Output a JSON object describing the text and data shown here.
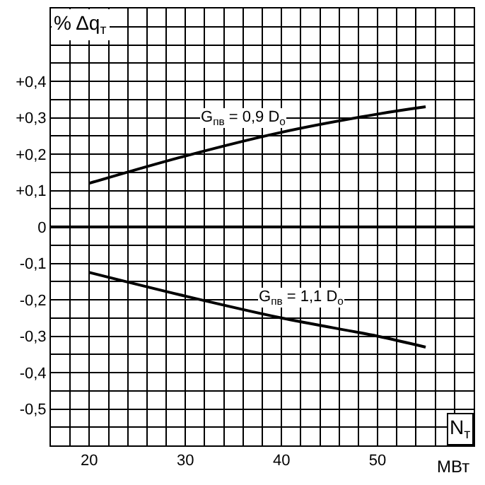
{
  "chart_data": {
    "type": "line",
    "ylabel": "% Δq$_{т}$",
    "xlabel": "N$_{т}$",
    "annotations": [
      "МВт",
      {
        "text": "G$_{пв}$ = 0,9 D$_{о}$",
        "x": 36,
        "y": 0.235
      },
      {
        "text": "G$_{пв}$ = 1,1 D$_{о}$",
        "x": 42,
        "y": -0.26
      }
    ],
    "series": [
      {
        "color": "#000000",
        "x": [
          20,
          30,
          40,
          50,
          55
        ],
        "values": [
          0.12,
          0.195,
          0.26,
          0.31,
          0.33
        ]
      },
      {
        "color": "#000000",
        "x": [
          20,
          30,
          40,
          50,
          55
        ],
        "values": [
          -0.125,
          -0.19,
          -0.25,
          -0.3,
          -0.33
        ]
      }
    ],
    "xlim": [
      16,
      60
    ],
    "xticks": [
      {
        "value": 16,
        "label": null
      },
      {
        "value": 18,
        "label": null
      },
      20,
      {
        "value": 22,
        "label": null
      },
      {
        "value": 24,
        "label": null
      },
      {
        "value": 26,
        "label": null
      },
      {
        "value": 28,
        "label": null
      },
      30,
      {
        "value": 32,
        "label": null
      },
      {
        "value": 34,
        "label": null
      },
      {
        "value": 36,
        "label": null
      },
      {
        "value": 38,
        "label": null
      },
      40,
      {
        "value": 42,
        "label": null
      },
      {
        "value": 44,
        "label": null
      },
      {
        "value": 46,
        "label": null
      },
      {
        "value": 48,
        "label": null
      },
      50,
      {
        "value": 52,
        "label": null
      },
      {
        "value": 54,
        "label": null
      },
      {
        "value": 56,
        "label": null
      },
      {
        "value": 58,
        "label": null
      },
      {
        "value": 60,
        "label": null
      }
    ],
    "ylim": [
      -0.6,
      0.6
    ],
    "yticks": [
      {
        "value": -0.6,
        "label": null
      },
      {
        "value": -0.55,
        "label": null
      },
      {
        "value": -0.5,
        "label": "-0,5"
      },
      {
        "value": -0.45,
        "label": null
      },
      {
        "value": -0.4,
        "label": "-0,4"
      },
      {
        "value": -0.35,
        "label": null
      },
      {
        "value": -0.3,
        "label": "-0,3"
      },
      {
        "value": -0.25,
        "label": null
      },
      {
        "value": -0.2,
        "label": "-0,2"
      },
      {
        "value": -0.15,
        "label": null
      },
      {
        "value": -0.1,
        "label": "-0,1"
      },
      {
        "value": -0.05,
        "label": null
      },
      0,
      {
        "value": 0.05,
        "label": null
      },
      {
        "value": 0.1,
        "label": "+0,1"
      },
      {
        "value": 0.15,
        "label": null
      },
      {
        "value": 0.2,
        "label": "+0,2"
      },
      {
        "value": 0.25,
        "label": null
      },
      {
        "value": 0.3,
        "label": "+0,3"
      },
      {
        "value": 0.35,
        "label": null
      },
      {
        "value": 0.4,
        "label": "+0,4"
      },
      {
        "value": 0.45,
        "label": null
      },
      {
        "value": 0.5,
        "label": null
      },
      {
        "value": 0.55,
        "label": null
      },
      {
        "value": 0.6,
        "label": null
      }
    ],
    "grid": true,
    "marker": "none",
    "line_style": "solid"
  }
}
